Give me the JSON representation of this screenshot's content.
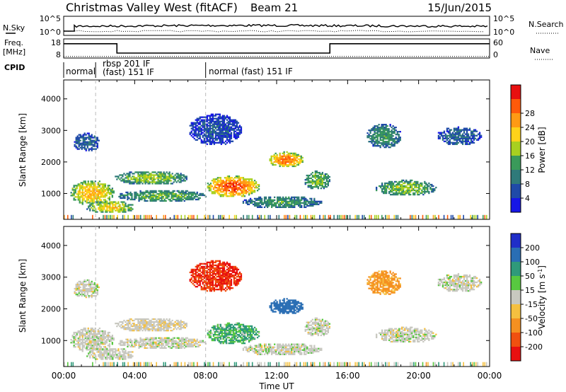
{
  "header": {
    "station": "Christmas Valley West (fitACF)",
    "beam": "Beam 21",
    "date": "15/Jun/2015"
  },
  "noise_panel": {
    "left_label": "N.Sky",
    "right_label": "N.Search",
    "left_ticks": [
      "10^5",
      "10^0"
    ],
    "right_ticks": [
      "10^5",
      "10^0"
    ]
  },
  "freq_panel": {
    "left_label_1": "Freq.",
    "left_label_2": "[MHz]",
    "right_label": "Nave",
    "left_ticks": [
      "18",
      "8"
    ],
    "right_ticks": [
      "60",
      "0"
    ]
  },
  "cpid_panel": {
    "label": "CPID",
    "modes": [
      {
        "label": "normal",
        "start_h": 0.0,
        "end_h": 1.8
      },
      {
        "label": "rbsp 201 IF",
        "start_h": 1.8,
        "end_h": 8.0
      },
      {
        "label": "(fast) 151 IF",
        "start_h": 1.8,
        "end_h": 8.0
      },
      {
        "label": "normal (fast) 151 IF",
        "start_h": 8.0,
        "end_h": 24.0
      }
    ]
  },
  "power_colorbar": {
    "label": "Power [dB]",
    "ticks": [
      "4",
      "8",
      "12",
      "16",
      "20",
      "24",
      "28"
    ],
    "colors": [
      "#1616e6",
      "#1f4aa8",
      "#2f7a7a",
      "#3a9a5a",
      "#a8d020",
      "#ffd21a",
      "#ff9a14",
      "#ff5a0a",
      "#e81010"
    ]
  },
  "velocity_colorbar": {
    "label": "Velocity [m s",
    "label_sup": "-1",
    "label_end": "]",
    "ticks": [
      "200",
      "100",
      "50",
      "15",
      "-15",
      "-50",
      "-100",
      "-200"
    ],
    "colors": [
      "#1f2ec8",
      "#2a6eb4",
      "#2f9a7a",
      "#58c840",
      "#c8c8c0",
      "#f5c040",
      "#f59020",
      "#f05010",
      "#e81010"
    ]
  },
  "chart_data": {
    "type": "heatmap",
    "xlabel": "Time UT",
    "ylabel": "Slant Range [km]",
    "x_ticks": [
      "00:00",
      "04:00",
      "08:00",
      "12:00",
      "16:00",
      "20:00",
      "00:00"
    ],
    "x_range_hours": [
      0,
      24
    ],
    "y_ticks": [
      "1000",
      "2000",
      "3000",
      "4000"
    ],
    "y_range_km": [
      180,
      4600
    ],
    "mode_change_hours": [
      1.8,
      8.0
    ],
    "frequency_mhz": [
      {
        "start_h": 0.0,
        "end_h": 3.0,
        "value": 16
      },
      {
        "start_h": 3.0,
        "end_h": 15.0,
        "value": 10.5
      },
      {
        "start_h": 15.0,
        "end_h": 24.0,
        "value": 16
      }
    ],
    "nave_level": 3,
    "regions": [
      {
        "t0": 0.3,
        "t1": 2.8,
        "r0": 600,
        "r1": 1400,
        "power": 22,
        "velocity": 0
      },
      {
        "t0": 1.2,
        "t1": 4.0,
        "r0": 350,
        "r1": 750,
        "power": 20,
        "velocity": 0
      },
      {
        "t0": 2.8,
        "t1": 7.0,
        "r0": 1250,
        "r1": 1700,
        "power": 16,
        "velocity": -5
      },
      {
        "t0": 3.0,
        "t1": 8.0,
        "r0": 700,
        "r1": 1100,
        "power": 14,
        "velocity": 0
      },
      {
        "t0": 8.0,
        "t1": 11.0,
        "r0": 850,
        "r1": 1550,
        "power": 28,
        "velocity": 30
      },
      {
        "t0": 10.0,
        "t1": 14.5,
        "r0": 500,
        "r1": 900,
        "power": 12,
        "velocity": 0
      },
      {
        "t0": 11.5,
        "t1": 13.5,
        "r0": 1800,
        "r1": 2300,
        "power": 26,
        "velocity": 120
      },
      {
        "t0": 13.5,
        "t1": 15.0,
        "r0": 1100,
        "r1": 1700,
        "power": 16,
        "velocity": 0
      },
      {
        "t0": 17.5,
        "t1": 21.0,
        "r0": 900,
        "r1": 1400,
        "power": 16,
        "velocity": 0
      },
      {
        "t0": 17.0,
        "t1": 19.0,
        "r0": 2400,
        "r1": 3200,
        "power": 12,
        "velocity": -60
      },
      {
        "t0": 21.0,
        "t1": 23.5,
        "r0": 2500,
        "r1": 3100,
        "power": 8,
        "velocity": 0
      },
      {
        "t0": 0.5,
        "t1": 2.0,
        "r0": 2300,
        "r1": 2900,
        "power": 8,
        "velocity": 0
      },
      {
        "t0": 7.0,
        "t1": 10.0,
        "r0": 2500,
        "r1": 3500,
        "power": 6,
        "velocity": -150
      }
    ]
  }
}
